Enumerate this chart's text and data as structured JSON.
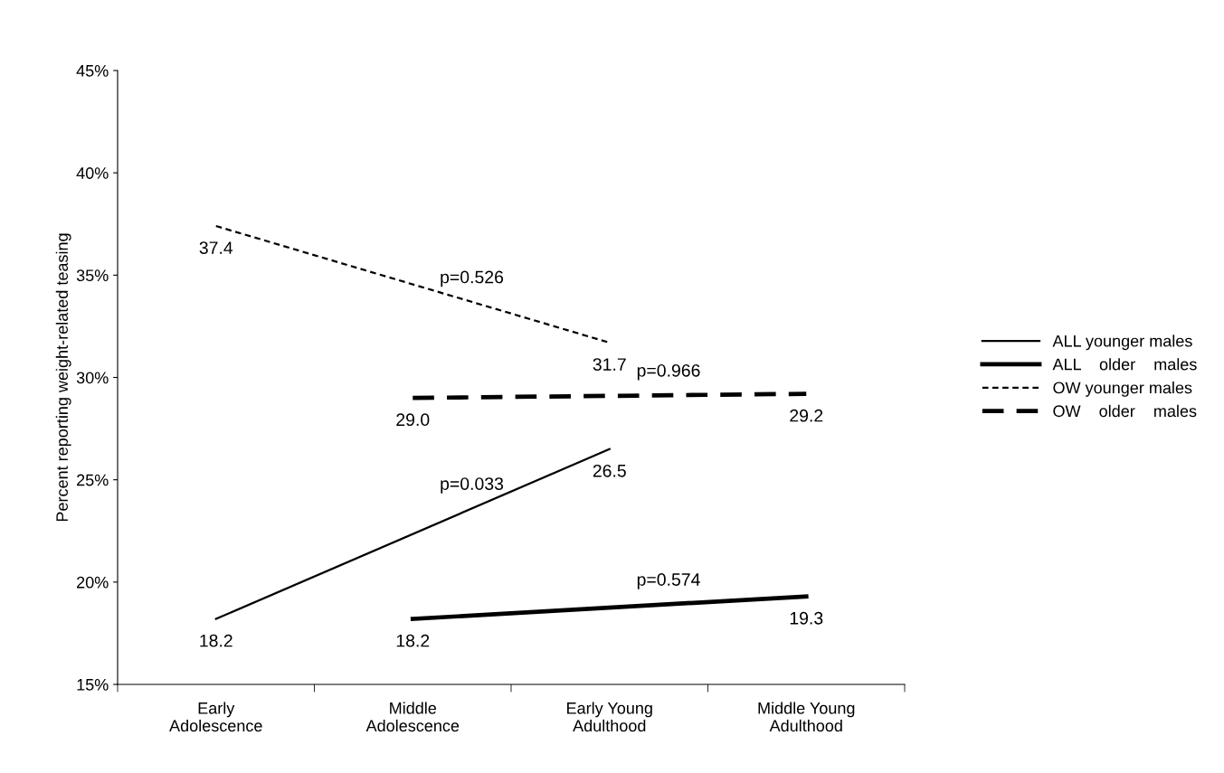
{
  "chart_data": {
    "type": "line",
    "ylabel": "Percent reporting weight-related teasing",
    "categories": [
      "Early\nAdolescence",
      "Middle\nAdolescence",
      "Early Young\nAdulthood",
      "Middle Young\nAdulthood"
    ],
    "ylim": [
      15,
      45
    ],
    "yticks": [
      {
        "value": 15,
        "label": "15%"
      },
      {
        "value": 20,
        "label": "20%"
      },
      {
        "value": 25,
        "label": "25%"
      },
      {
        "value": 30,
        "label": "30%"
      },
      {
        "value": 35,
        "label": "35%"
      },
      {
        "value": 40,
        "label": "40%"
      },
      {
        "value": 45,
        "label": "45%"
      }
    ],
    "series": [
      {
        "name": "ALL younger males",
        "color": "#000000",
        "line_style": "solid",
        "values": [
          18.2,
          null,
          26.5,
          null
        ],
        "value_labels": [
          "18.2",
          null,
          "26.5",
          null
        ]
      },
      {
        "name": "ALL    older    males",
        "color": "#000000",
        "line_style": "solid",
        "values": [
          null,
          18.2,
          null,
          19.3
        ],
        "value_labels": [
          null,
          "18.2",
          null,
          "19.3"
        ]
      },
      {
        "name": "OW younger males",
        "color": "#000000",
        "line_style": "dotted",
        "values": [
          37.4,
          null,
          31.7,
          null
        ],
        "value_labels": [
          "37.4",
          null,
          "31.7",
          null
        ]
      },
      {
        "name": "OW    older    males",
        "color": "#000000",
        "line_style": "dashed",
        "values": [
          null,
          29.0,
          null,
          29.2
        ],
        "value_labels": [
          null,
          "29.0",
          null,
          "29.2"
        ]
      }
    ],
    "annotations": [
      "p=0.033",
      "p=0.574",
      "p=0.526",
      "p=0.966"
    ],
    "grid": false,
    "legend": "right",
    "marker": "none"
  }
}
